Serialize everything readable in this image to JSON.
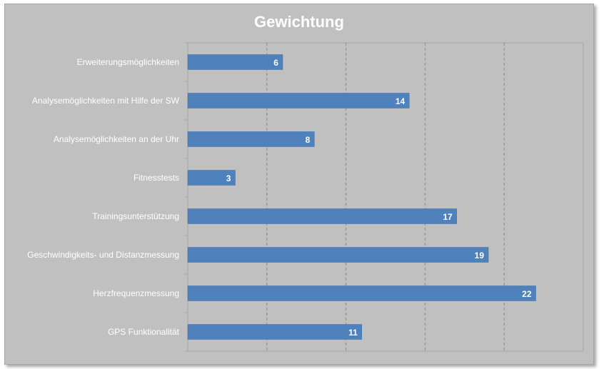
{
  "chart_data": {
    "type": "bar",
    "orientation": "horizontal",
    "title": "Gewichtung",
    "categories": [
      "Erweiterungsmöglichkeiten",
      "Analysemöglichkeiten mit Hilfe der SW",
      "Analysemöglichkeiten an der Uhr",
      "Fitnesstests",
      "Trainingsunterstützung",
      "Geschwindigkeits- und Distanzmessung",
      "Herzfrequenzmessung",
      "GPS Funktionalität"
    ],
    "values": [
      6,
      14,
      8,
      3,
      17,
      19,
      22,
      11
    ],
    "xlim": [
      0,
      25
    ],
    "x_gridlines": [
      5,
      10,
      15,
      20
    ],
    "grid": "vertical dashed",
    "data_labels": "inside end",
    "bar_color": "#4f81bd",
    "background_color": "#c0c0c0"
  }
}
